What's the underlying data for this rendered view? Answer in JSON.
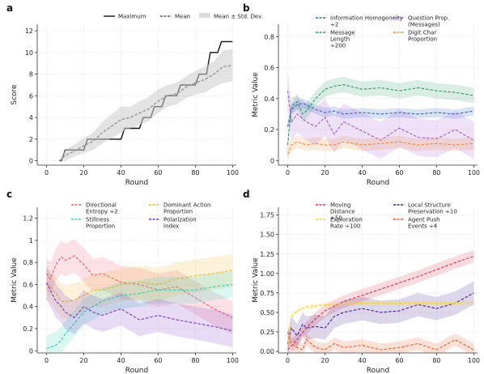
{
  "chart_data": [
    {
      "panel": "a",
      "type": "line",
      "xlabel": "Round",
      "ylabel": "Score",
      "xlim": [
        -5,
        102
      ],
      "ylim": [
        -0.4,
        12.6
      ],
      "xticks": [
        0,
        20,
        40,
        60,
        80,
        100
      ],
      "yticks": [
        0,
        2,
        4,
        6,
        8,
        10,
        12
      ],
      "grid": true,
      "legend": "top",
      "series": [
        {
          "name": "Maximum",
          "style": "solid",
          "color": "#111111",
          "x": [
            7,
            8,
            10,
            12,
            20,
            22,
            30,
            32,
            40,
            42,
            50,
            52,
            56,
            58,
            62,
            64,
            70,
            72,
            80,
            82,
            86,
            88,
            92,
            94,
            100
          ],
          "y": [
            0,
            0,
            1,
            1,
            1,
            2,
            2,
            2,
            2,
            3,
            3,
            4,
            4,
            5,
            5,
            6,
            6,
            7,
            7,
            8,
            8,
            10,
            10,
            11,
            11
          ]
        },
        {
          "name": "Mean",
          "style": "dashed",
          "color": "#555555",
          "x": [
            7,
            10,
            15,
            20,
            25,
            30,
            35,
            40,
            45,
            50,
            55,
            60,
            65,
            70,
            75,
            80,
            85,
            90,
            95,
            100
          ],
          "y": [
            0,
            0.5,
            0.9,
            1.4,
            1.8,
            2.6,
            3.2,
            3.8,
            4.0,
            4.4,
            4.8,
            5.5,
            6.0,
            6.2,
            6.8,
            7.2,
            7.5,
            8.0,
            8.7,
            8.8
          ]
        },
        {
          "name": "Mean ± Std. Dev.",
          "style": "band",
          "color": "#cccccc",
          "x": [
            7,
            10,
            15,
            20,
            25,
            30,
            35,
            40,
            45,
            50,
            55,
            60,
            65,
            70,
            75,
            80,
            85,
            90,
            95,
            100
          ],
          "lower": [
            0,
            0,
            0.4,
            0.7,
            1.0,
            1.6,
            2.1,
            2.6,
            3.0,
            3.3,
            3.7,
            4.4,
            5.0,
            5.2,
            5.8,
            6.1,
            6.3,
            6.8,
            7.2,
            7.3
          ],
          "upper": [
            0,
            1,
            1.5,
            2.1,
            2.6,
            3.6,
            4.3,
            5.0,
            5.0,
            5.5,
            5.9,
            6.6,
            7.0,
            7.2,
            7.8,
            8.3,
            8.7,
            9.2,
            10.2,
            10.3
          ]
        }
      ]
    },
    {
      "panel": "b",
      "type": "line",
      "xlabel": "Round",
      "ylabel": "Metric Value",
      "xlim": [
        -5,
        102
      ],
      "ylim": [
        -0.03,
        0.88
      ],
      "xticks": [
        0,
        20,
        40,
        60,
        80,
        100
      ],
      "yticks": [
        0.0,
        0.2,
        0.4,
        0.6,
        0.8
      ],
      "grid": true,
      "legend": "top",
      "series": [
        {
          "name": "Information Homogeneity ÷2",
          "color": "#2f66c8",
          "x": [
            0,
            2,
            5,
            8,
            10,
            15,
            20,
            25,
            30,
            40,
            50,
            60,
            70,
            80,
            90,
            100
          ],
          "y": [
            0.22,
            0.33,
            0.36,
            0.37,
            0.36,
            0.33,
            0.31,
            0.32,
            0.3,
            0.31,
            0.3,
            0.31,
            0.3,
            0.31,
            0.3,
            0.32
          ],
          "band": 0.03
        },
        {
          "name": "Question Prop. (Messages)",
          "color": "#a05ad8",
          "x": [
            0,
            2,
            5,
            8,
            10,
            15,
            20,
            25,
            30,
            40,
            50,
            60,
            70,
            80,
            90,
            100
          ],
          "y": [
            0.45,
            0.25,
            0.3,
            0.27,
            0.25,
            0.22,
            0.28,
            0.17,
            0.25,
            0.19,
            0.13,
            0.21,
            0.15,
            0.14,
            0.2,
            0.13
          ],
          "band": 0.12
        },
        {
          "name": "Message Length ÷200",
          "color": "#2c9a6c",
          "x": [
            0,
            2,
            5,
            8,
            10,
            15,
            20,
            25,
            30,
            40,
            50,
            60,
            70,
            80,
            90,
            100
          ],
          "y": [
            0.1,
            0.35,
            0.38,
            0.3,
            0.32,
            0.4,
            0.46,
            0.48,
            0.49,
            0.46,
            0.47,
            0.45,
            0.47,
            0.45,
            0.44,
            0.42
          ],
          "band": 0.05
        },
        {
          "name": "Digit Char Proportion",
          "color": "#ee8c3a",
          "x": [
            0,
            2,
            5,
            8,
            10,
            15,
            20,
            25,
            30,
            40,
            50,
            60,
            70,
            80,
            90,
            100
          ],
          "y": [
            0.04,
            0.1,
            0.12,
            0.11,
            0.1,
            0.11,
            0.1,
            0.1,
            0.12,
            0.1,
            0.11,
            0.12,
            0.1,
            0.11,
            0.1,
            0.11
          ],
          "band": 0.04
        }
      ]
    },
    {
      "panel": "c",
      "type": "line",
      "xlabel": "Round",
      "ylabel": "Metric Value",
      "xlim": [
        -5,
        102
      ],
      "ylim": [
        -0.02,
        1.3
      ],
      "xticks": [
        0,
        20,
        40,
        60,
        80,
        100
      ],
      "yticks": [
        0.0,
        0.2,
        0.4,
        0.6,
        0.8,
        1.0,
        1.2
      ],
      "grid": true,
      "legend": "top",
      "series": [
        {
          "name": "Directional Entropy ÷2",
          "color": "#ec5a72",
          "x": [
            0,
            2,
            5,
            8,
            10,
            15,
            20,
            25,
            30,
            40,
            50,
            60,
            70,
            80,
            90,
            100
          ],
          "y": [
            0.7,
            0.65,
            0.78,
            0.85,
            0.82,
            0.86,
            0.78,
            0.68,
            0.7,
            0.62,
            0.6,
            0.55,
            0.58,
            0.48,
            0.38,
            0.3
          ],
          "band": 0.15
        },
        {
          "name": "Dominant Action Proportion",
          "color": "#f0b82a",
          "x": [
            0,
            2,
            5,
            8,
            10,
            15,
            20,
            25,
            30,
            40,
            50,
            60,
            70,
            80,
            90,
            100
          ],
          "y": [
            0.6,
            0.58,
            0.52,
            0.45,
            0.44,
            0.46,
            0.5,
            0.55,
            0.55,
            0.6,
            0.62,
            0.6,
            0.65,
            0.68,
            0.7,
            0.73
          ],
          "band": 0.15
        },
        {
          "name": "Stillness Proportion",
          "color": "#33d0b8",
          "x": [
            0,
            2,
            5,
            8,
            10,
            15,
            20,
            25,
            30,
            40,
            50,
            60,
            70,
            80,
            90,
            100
          ],
          "y": [
            0.02,
            0.03,
            0.05,
            0.1,
            0.15,
            0.25,
            0.35,
            0.4,
            0.45,
            0.5,
            0.52,
            0.55,
            0.55,
            0.55,
            0.58,
            0.6
          ],
          "band": 0.12
        },
        {
          "name": "Polarization Index",
          "color": "#7a35c8",
          "x": [
            0,
            2,
            5,
            8,
            10,
            15,
            20,
            25,
            30,
            40,
            50,
            60,
            70,
            80,
            90,
            100
          ],
          "y": [
            0.62,
            0.55,
            0.45,
            0.4,
            0.35,
            0.3,
            0.4,
            0.35,
            0.32,
            0.38,
            0.28,
            0.32,
            0.28,
            0.25,
            0.22,
            0.18
          ],
          "band": 0.15
        }
      ]
    },
    {
      "panel": "d",
      "type": "line",
      "xlabel": "Round",
      "ylabel": "Metric Value",
      "xlim": [
        -5,
        102
      ],
      "ylim": [
        -0.02,
        1.85
      ],
      "xticks": [
        0,
        20,
        40,
        60,
        80,
        100
      ],
      "yticks": [
        0.0,
        0.25,
        0.5,
        0.75,
        1.0,
        1.25,
        1.5,
        1.75
      ],
      "yticklabels": [
        "0.00",
        "0.25",
        "0.50",
        "0.75",
        "1.00",
        "1.25",
        "1.50",
        "1.75"
      ],
      "grid": true,
      "legend": "top",
      "series": [
        {
          "name": "Moving Distance ÷50",
          "color": "#e0334f",
          "x": [
            0,
            5,
            10,
            15,
            20,
            25,
            30,
            40,
            50,
            60,
            70,
            80,
            90,
            100
          ],
          "y": [
            0.02,
            0.15,
            0.3,
            0.42,
            0.52,
            0.58,
            0.64,
            0.72,
            0.8,
            0.88,
            0.96,
            1.05,
            1.14,
            1.22
          ],
          "band": 0.08
        },
        {
          "name": "Local Structure Preservation ÷10",
          "color": "#4a1a90",
          "x": [
            0,
            2,
            5,
            8,
            10,
            15,
            20,
            25,
            30,
            40,
            50,
            60,
            70,
            80,
            90,
            100
          ],
          "y": [
            0.1,
            0.3,
            0.2,
            0.35,
            0.3,
            0.32,
            0.3,
            0.45,
            0.5,
            0.55,
            0.5,
            0.52,
            0.6,
            0.55,
            0.62,
            0.75
          ],
          "band": 0.15
        },
        {
          "name": "Exploration Rate ÷100",
          "color": "#f2d23a",
          "x": [
            0,
            2,
            5,
            8,
            10,
            15,
            20,
            30,
            40,
            50,
            60,
            70,
            80,
            90,
            100
          ],
          "y": [
            0.05,
            0.45,
            0.52,
            0.55,
            0.57,
            0.58,
            0.6,
            0.61,
            0.62,
            0.62,
            0.62,
            0.62,
            0.62,
            0.62,
            0.63
          ],
          "band": 0.03
        },
        {
          "name": "Agent Push Events ÷4",
          "color": "#ee5a2a",
          "x": [
            0,
            2,
            5,
            8,
            10,
            15,
            20,
            25,
            30,
            40,
            50,
            60,
            70,
            80,
            90,
            100
          ],
          "y": [
            0.25,
            0.1,
            0.05,
            0.02,
            0.15,
            0.05,
            0.02,
            0.1,
            0.05,
            0.08,
            0.02,
            0.05,
            0.1,
            0.02,
            0.15,
            0.02
          ],
          "band": 0.08
        }
      ]
    }
  ]
}
